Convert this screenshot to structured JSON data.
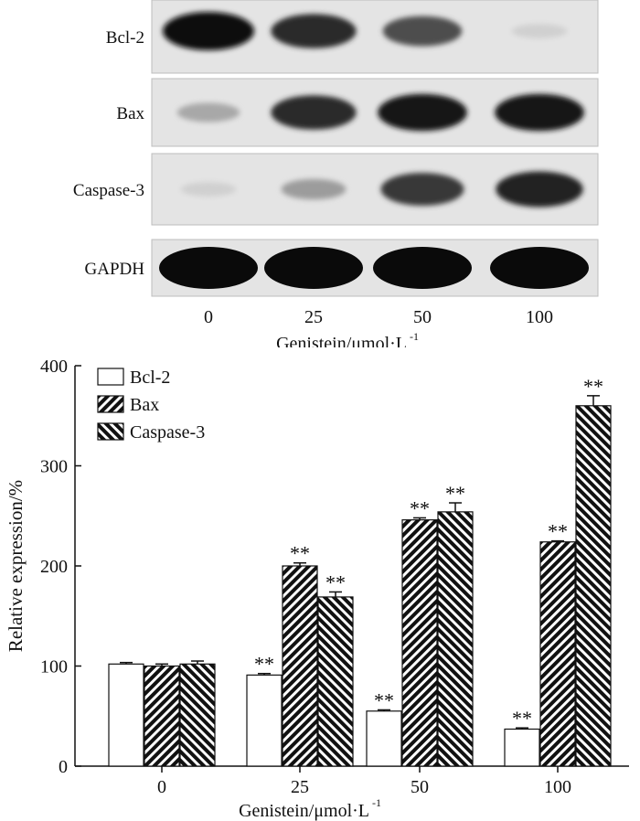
{
  "blot": {
    "rows": [
      {
        "label": "Bcl-2",
        "intensities": [
          1.0,
          0.85,
          0.7,
          0.12
        ]
      },
      {
        "label": "Bax",
        "intensities": [
          0.3,
          0.85,
          0.95,
          0.95
        ]
      },
      {
        "label": "Caspase-3",
        "intensities": [
          0.12,
          0.35,
          0.8,
          0.9
        ]
      },
      {
        "label": "GAPDH",
        "intensities": [
          1.0,
          1.0,
          1.0,
          1.0
        ]
      }
    ],
    "lane_labels": [
      "0",
      "25",
      "50",
      "100"
    ],
    "xlabel": "Genistein/μmol·L",
    "xlabel_sup": "-1"
  },
  "chart_data": {
    "type": "bar",
    "categories": [
      "0",
      "25",
      "50",
      "100"
    ],
    "series": [
      {
        "name": "Bcl-2",
        "pattern": "open",
        "values": [
          102,
          91,
          55,
          37
        ],
        "errors": [
          1.5,
          1.5,
          1.2,
          1.2
        ],
        "significance": [
          "",
          "**",
          "**",
          "**"
        ]
      },
      {
        "name": "Bax",
        "pattern": "hatch-right",
        "values": [
          100,
          200,
          246,
          224
        ],
        "errors": [
          2.0,
          3.0,
          2.0,
          1.0
        ],
        "significance": [
          "",
          "**",
          "**",
          "**"
        ]
      },
      {
        "name": "Caspase-3",
        "pattern": "hatch-left",
        "values": [
          102,
          169,
          254,
          360
        ],
        "errors": [
          3.0,
          5.0,
          9.0,
          10.0
        ],
        "significance": [
          "",
          "**",
          "**",
          "**"
        ]
      }
    ],
    "ylim": [
      0,
      400
    ],
    "yticks": [
      0,
      100,
      200,
      300,
      400
    ],
    "ylabel": "Relative expression/%",
    "xlabel": "Genistein/μmol·L",
    "xlabel_sup": "-1",
    "legend_position": "top-left"
  }
}
